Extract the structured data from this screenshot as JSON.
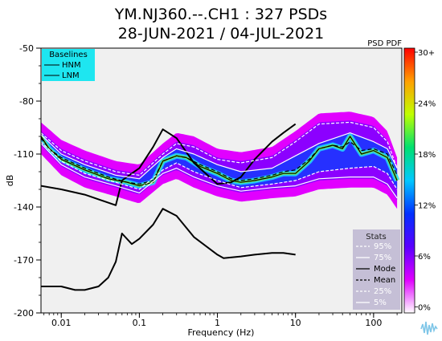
{
  "title_line1": "YM.NJ360.--.CH1 : 327 PSDs",
  "title_line2": "28-JUN-2021 / 04-JUL-2021",
  "colorbar_title": "PSD PDF",
  "chart_data": {
    "type": "line",
    "xlabel": "Frequency (Hz)",
    "ylabel": "dB",
    "xscale": "log",
    "xlim": [
      0.0055,
      230
    ],
    "ylim": [
      -200,
      -50
    ],
    "x_ticks": [
      {
        "value": 0.01,
        "label": "0.01"
      },
      {
        "value": 0.1,
        "label": "0.1"
      },
      {
        "value": 1,
        "label": "1"
      },
      {
        "value": 10,
        "label": "10"
      },
      {
        "value": 100,
        "label": "100"
      }
    ],
    "y_ticks": [
      {
        "value": -50,
        "label": "-50"
      },
      {
        "value": -80,
        "label": "-80"
      },
      {
        "value": -110,
        "label": "-110"
      },
      {
        "value": -140,
        "label": "-140"
      },
      {
        "value": -170,
        "label": "-170"
      },
      {
        "value": -200,
        "label": "-200"
      }
    ],
    "baselines_title": "Baselines",
    "series": [
      {
        "name": "HNM",
        "color": "#000000",
        "x": [
          0.0055,
          0.01,
          0.02,
          0.05,
          0.06,
          0.08,
          0.1,
          0.15,
          0.2,
          0.3,
          0.5,
          1,
          1.5,
          2,
          3,
          5,
          7,
          10
        ],
        "y": [
          -128,
          -130,
          -133,
          -139,
          -125,
          -121,
          -118,
          -106,
          -96,
          -101,
          -115,
          -127,
          -126,
          -123,
          -113,
          -103,
          -98,
          -93
        ]
      },
      {
        "name": "LNM",
        "color": "#000000",
        "x": [
          0.0055,
          0.01,
          0.015,
          0.02,
          0.03,
          0.04,
          0.05,
          0.06,
          0.08,
          0.1,
          0.15,
          0.2,
          0.3,
          0.5,
          1,
          1.2,
          2,
          3,
          5,
          7,
          10
        ],
        "y": [
          -185,
          -185,
          -187,
          -187,
          -185,
          -180,
          -171,
          -155,
          -161,
          -158,
          -150,
          -141,
          -145,
          -157,
          -167,
          -169,
          -168,
          -167,
          -166,
          -166,
          -167
        ]
      },
      {
        "name": "Mode",
        "color": "#000000",
        "x": [
          0.0055,
          0.007,
          0.01,
          0.02,
          0.04,
          0.07,
          0.1,
          0.15,
          0.2,
          0.3,
          0.4,
          0.6,
          1,
          1.5,
          2,
          3,
          5,
          7,
          10,
          15,
          20,
          30,
          40,
          50,
          70,
          100,
          150,
          200
        ],
        "y": [
          -100,
          -107,
          -113,
          -119,
          -124,
          -126,
          -128,
          -126,
          -114,
          -111,
          -112,
          -117,
          -121,
          -125,
          -126,
          -125,
          -123,
          -121,
          -121,
          -114,
          -107,
          -105,
          -107,
          -100,
          -110,
          -108,
          -112,
          -125
        ]
      },
      {
        "name": "Mean",
        "color": "#000000",
        "x": [
          0.0055,
          0.007,
          0.01,
          0.02,
          0.04,
          0.07,
          0.1,
          0.15,
          0.2,
          0.3,
          0.4,
          0.6,
          1,
          1.5,
          2,
          3,
          5,
          7,
          10,
          15,
          20,
          30,
          40,
          50,
          70,
          100,
          150,
          200
        ],
        "y": [
          -101,
          -107,
          -112,
          -118,
          -123,
          -126,
          -127,
          -125,
          -114,
          -111,
          -112,
          -116,
          -120,
          -124,
          -125,
          -124,
          -122,
          -120,
          -119,
          -113,
          -107,
          -105,
          -106,
          -103,
          -108,
          -107,
          -110,
          -122
        ]
      },
      {
        "name": "95%",
        "color": "#ffffff",
        "x": [
          0.0055,
          0.01,
          0.02,
          0.05,
          0.1,
          0.2,
          0.3,
          0.5,
          1,
          2,
          5,
          10,
          20,
          50,
          100,
          150,
          200
        ],
        "y": [
          -98,
          -108,
          -114,
          -120,
          -122,
          -110,
          -104,
          -106,
          -113,
          -115,
          -112,
          -103,
          -93,
          -92,
          -95,
          -103,
          -118
        ]
      },
      {
        "name": "75%",
        "color": "#ffffff",
        "x": [
          0.0055,
          0.01,
          0.02,
          0.05,
          0.1,
          0.2,
          0.3,
          0.5,
          1,
          2,
          5,
          10,
          20,
          50,
          100,
          150,
          200
        ],
        "y": [
          -99,
          -110,
          -116,
          -122,
          -124,
          -112,
          -107,
          -110,
          -116,
          -120,
          -118,
          -111,
          -104,
          -98,
          -103,
          -107,
          -118
        ]
      },
      {
        "name": "25%",
        "color": "#ffffff",
        "x": [
          0.0055,
          0.01,
          0.02,
          0.05,
          0.1,
          0.2,
          0.3,
          0.5,
          1,
          2,
          5,
          10,
          20,
          50,
          100,
          150,
          200
        ],
        "y": [
          -103,
          -114,
          -121,
          -126,
          -130,
          -119,
          -115,
          -120,
          -125,
          -129,
          -127,
          -125,
          -120,
          -118,
          -117,
          -121,
          -130
        ]
      },
      {
        "name": "5%",
        "color": "#ffffff",
        "x": [
          0.0055,
          0.01,
          0.02,
          0.05,
          0.1,
          0.2,
          0.3,
          0.5,
          1,
          2,
          5,
          10,
          20,
          50,
          100,
          150,
          200
        ],
        "y": [
          -104,
          -116,
          -123,
          -128,
          -132,
          -121,
          -118,
          -123,
          -128,
          -131,
          -129,
          -128,
          -124,
          -123,
          -123,
          -127,
          -135
        ]
      }
    ],
    "stats_title": "Stats",
    "stats_entries": [
      "95%",
      "75%",
      "Mode",
      "Mean",
      "25%",
      "5%"
    ],
    "colorbar": {
      "min": 0,
      "max": 30,
      "ticks": [
        "30+",
        "24%",
        "18%",
        "12%",
        "6%",
        "0%"
      ],
      "colors": [
        "#ffffff",
        "#e000ff",
        "#5a00ff",
        "#0030ff",
        "#00c8ff",
        "#00e070",
        "#c0ff00",
        "#ffa000",
        "#ff0000"
      ]
    }
  }
}
